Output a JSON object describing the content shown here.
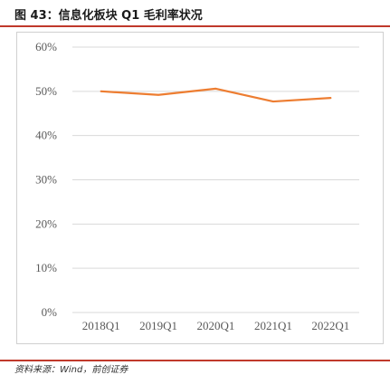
{
  "title": "图 43：信息化板块 Q1 毛利率状况",
  "source": "资料来源：Wind，前创证券",
  "colors": {
    "accent_rule": "#c0392b",
    "line": "#ed7d31",
    "grid": "#d9d9d9"
  },
  "chart_data": {
    "type": "line",
    "categories": [
      "2018Q1",
      "2019Q1",
      "2020Q1",
      "2021Q1",
      "2022Q1"
    ],
    "series": [
      {
        "values": [
          50.0,
          49.2,
          50.6,
          47.7,
          48.5
        ]
      }
    ],
    "yticks": [
      "0%",
      "10%",
      "20%",
      "30%",
      "40%",
      "50%",
      "60%"
    ],
    "ylim": [
      0,
      60
    ],
    "grid": true,
    "legend": "none"
  }
}
